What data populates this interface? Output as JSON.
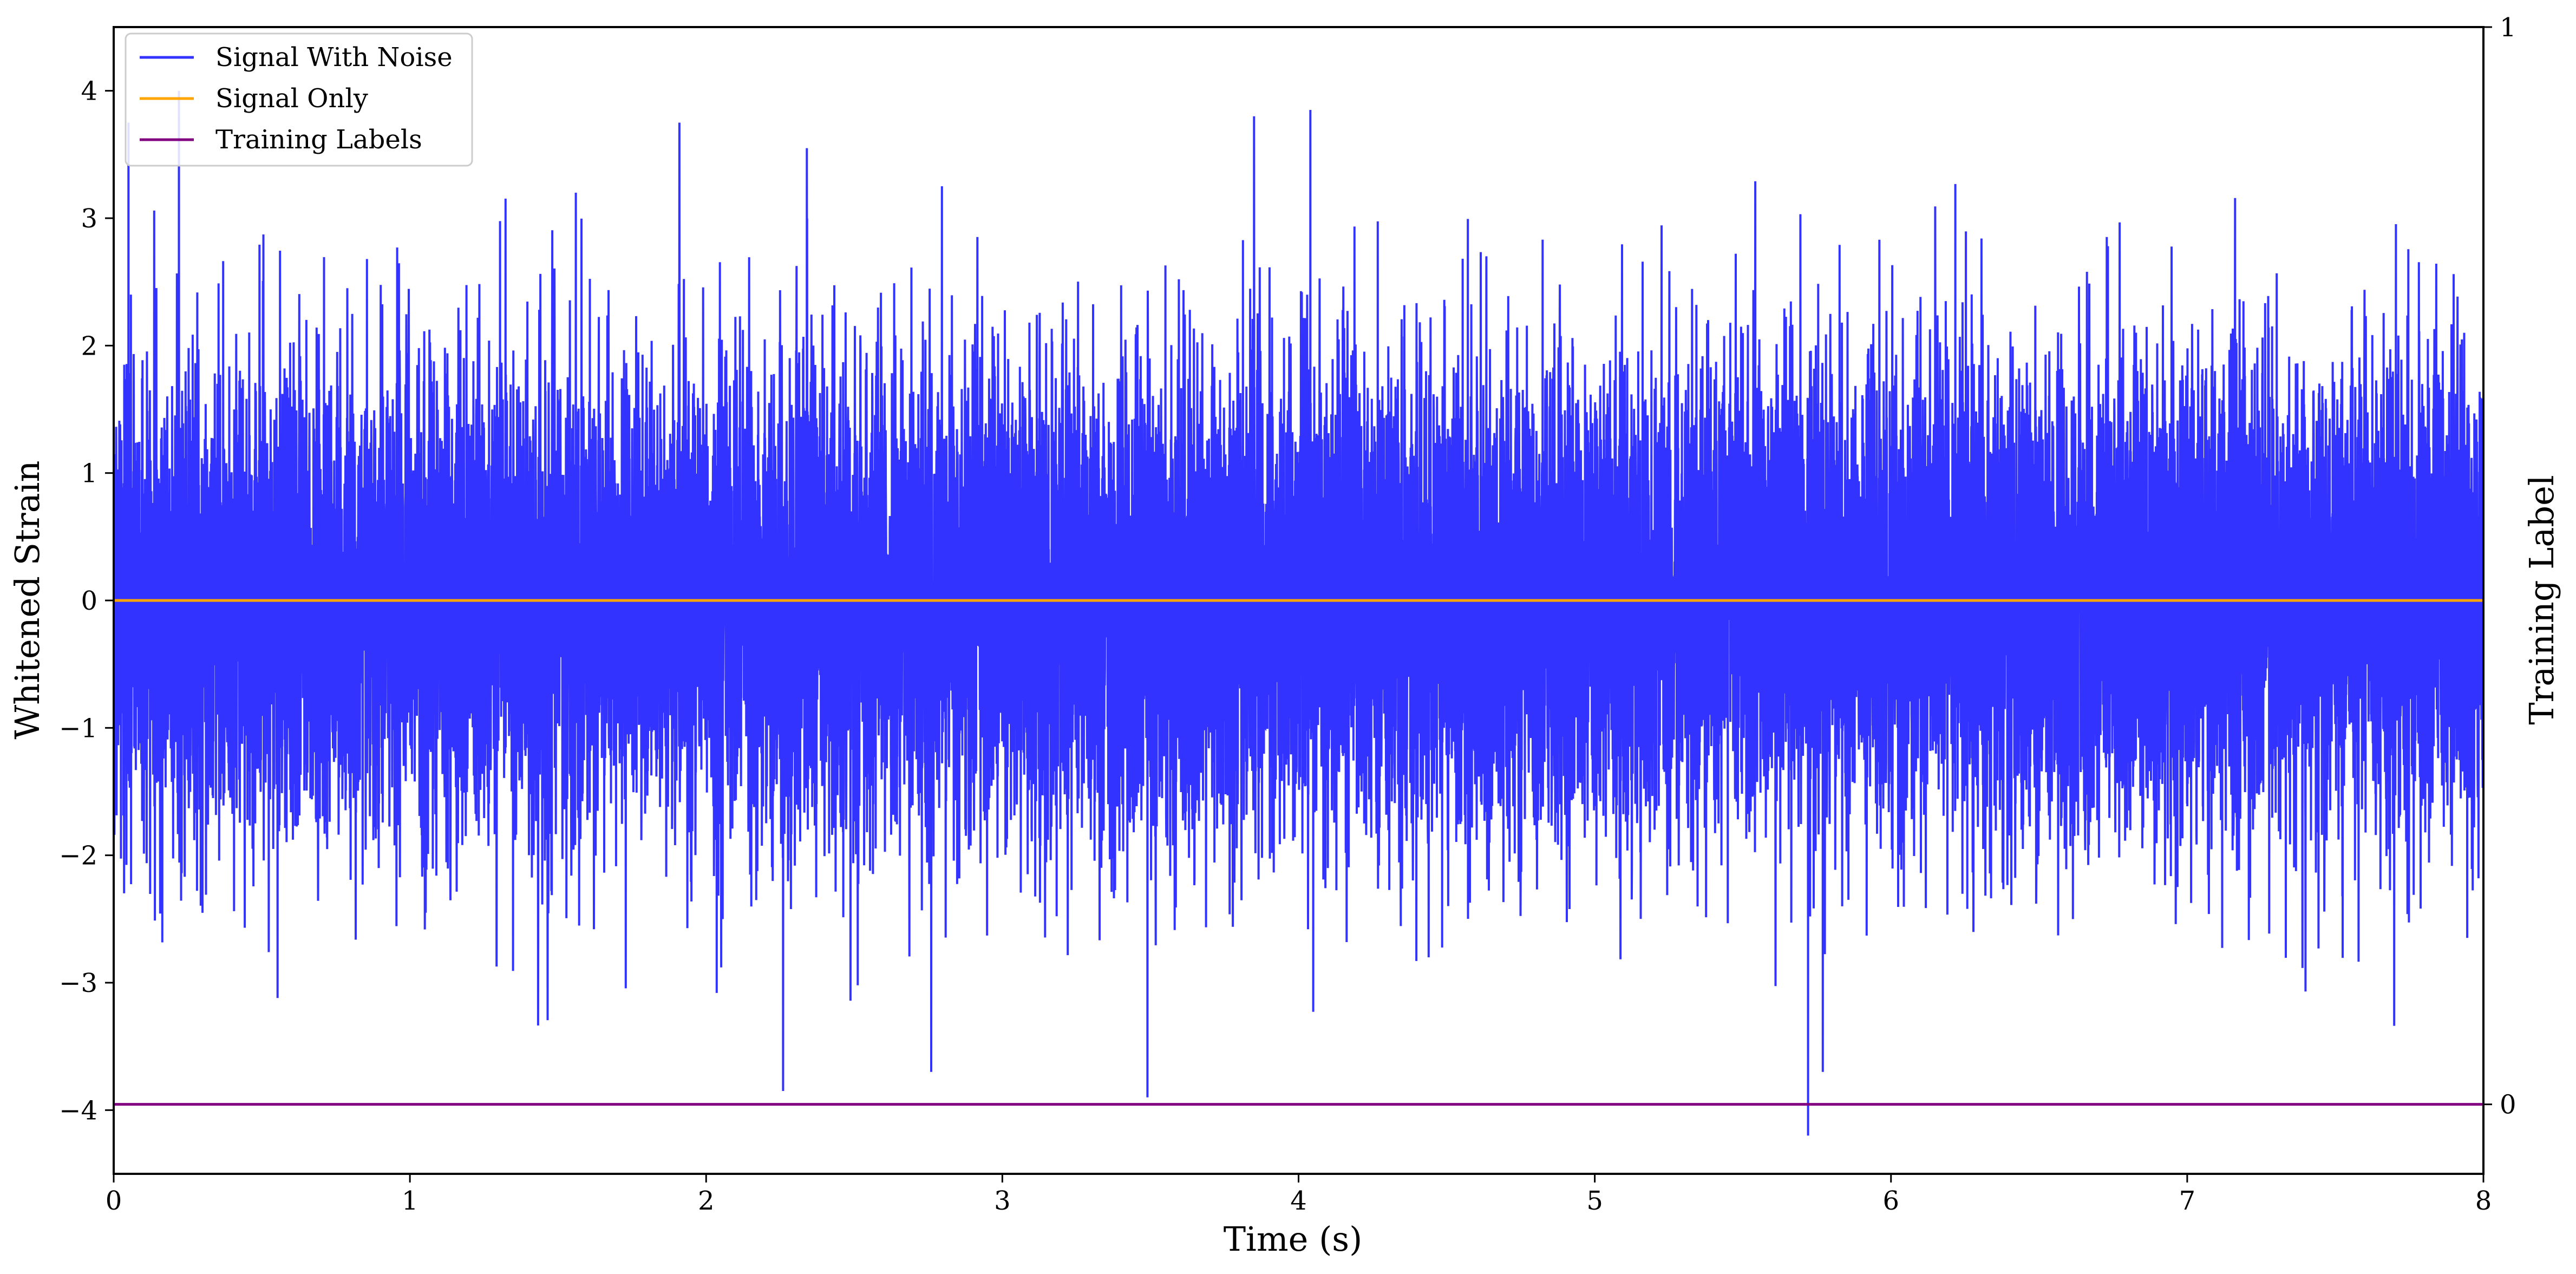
{
  "chart_data": {
    "type": "line",
    "xlabel": "Time (s)",
    "ylabel": "Whitened Strain",
    "y2label": "Training Label",
    "xlim": [
      0,
      8
    ],
    "ylim": [
      -4.5,
      4.5
    ],
    "y2lim": [
      -0.0645,
      1.0
    ],
    "xticks": [
      "0",
      "1",
      "2",
      "3",
      "4",
      "5",
      "6",
      "7",
      "8"
    ],
    "yticks": [
      "−4",
      "−3",
      "−2",
      "−1",
      "0",
      "1",
      "2",
      "3",
      "4"
    ],
    "y2ticks": [
      "0",
      "1"
    ],
    "grid": false,
    "legend_position": "top-left",
    "series": [
      {
        "name": "Signal With Noise",
        "color": "#3333ff",
        "description": "dense Gaussian-like noise, std ≈ 1, peaks within −4.2 to 3.9",
        "peaks": [
          {
            "x": 0.05,
            "y": 3.75
          },
          {
            "x": 0.22,
            "y": 4.0
          },
          {
            "x": 1.56,
            "y": 3.2
          },
          {
            "x": 1.91,
            "y": 3.75
          },
          {
            "x": 2.34,
            "y": 3.55
          },
          {
            "x": 3.85,
            "y": 3.8
          },
          {
            "x": 4.04,
            "y": 3.85
          },
          {
            "x": 2.26,
            "y": -3.85
          },
          {
            "x": 2.76,
            "y": -3.7
          },
          {
            "x": 3.49,
            "y": -3.9
          },
          {
            "x": 5.72,
            "y": -4.2
          },
          {
            "x": 5.77,
            "y": -3.7
          }
        ]
      },
      {
        "name": "Signal Only",
        "color": "#ffa500",
        "x": [
          0,
          8
        ],
        "values": [
          0,
          0
        ],
        "axis": "left"
      },
      {
        "name": "Training Labels",
        "color": "#800080",
        "x": [
          0,
          8
        ],
        "values": [
          0,
          0
        ],
        "axis": "right"
      }
    ]
  }
}
